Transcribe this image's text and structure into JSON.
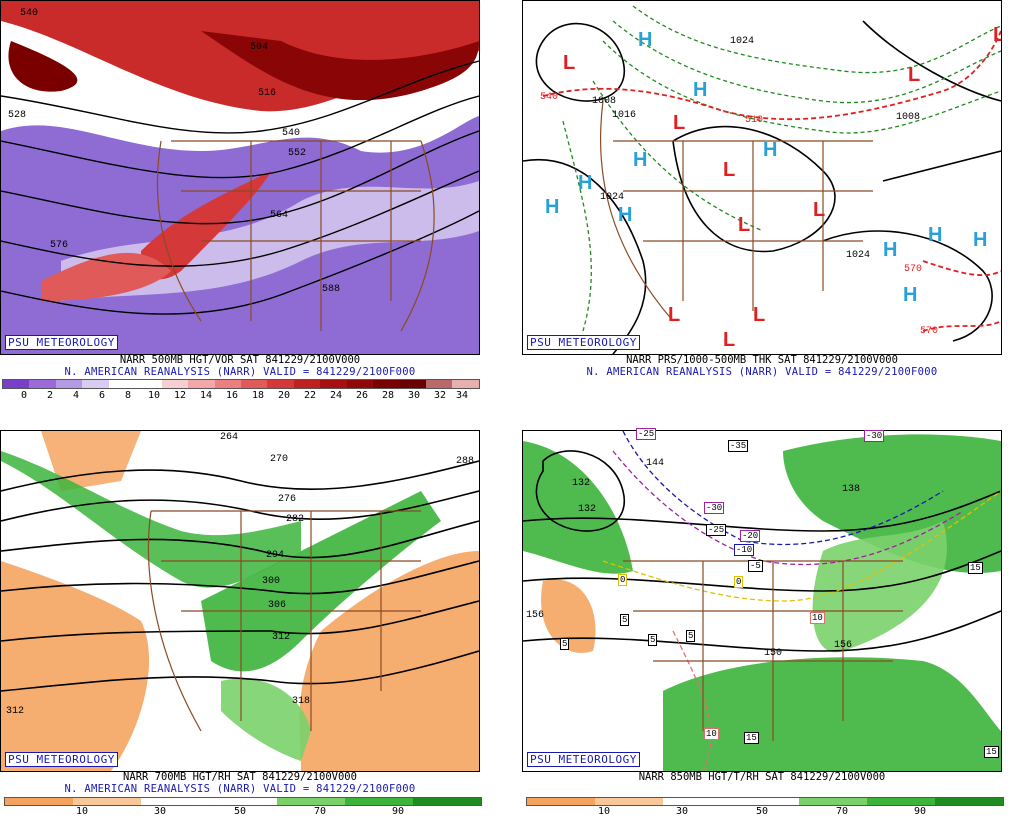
{
  "panels": [
    {
      "id": "vort500",
      "psu_label": "PSU METEOROLOGY",
      "title_line1": "NARR 500MB HGT/VOR SAT 841229/2100V000",
      "title_line2": "N. AMERICAN REANALYSIS (NARR) VALID = 841229/2100F000",
      "contour_labels": [
        "540",
        "504",
        "516",
        "528",
        "540",
        "552",
        "564",
        "576",
        "588"
      ],
      "colorbar": {
        "labels": [
          "0",
          "2",
          "4",
          "6",
          "8",
          "10",
          "12",
          "14",
          "16",
          "18",
          "20",
          "22",
          "24",
          "26",
          "28",
          "30",
          "32",
          "34"
        ],
        "colors": [
          "#7a3fc8",
          "#9a6ad8",
          "#b59ae6",
          "#d8ccf2",
          "#ffffff",
          "#ffffff",
          "#f6d0d0",
          "#f2a8a8",
          "#ea8080",
          "#e05a5a",
          "#d43838",
          "#c02020",
          "#a81010",
          "#900808",
          "#7a0000",
          "#6a0000",
          "#b86a6a",
          "#e7b0b0"
        ]
      }
    },
    {
      "id": "thk1000500",
      "psu_label": "PSU METEOROLOGY",
      "title_line1": "NARR PRS/1000-500MB THK SAT 841229/2100V000",
      "title_line2": "N. AMERICAN REANALYSIS (NARR) VALID = 841229/2100F000",
      "contour_labels": [
        "1024",
        "1008",
        "1016",
        "1024",
        "1024",
        "1008",
        "540",
        "510",
        "570",
        "570"
      ],
      "highs_lows": {
        "H": "H",
        "L": "L"
      }
    },
    {
      "id": "rh700",
      "psu_label": "PSU METEOROLOGY",
      "title_line1": "NARR 700MB HGT/RH SAT 841229/2100V000",
      "title_line2": "N. AMERICAN REANALYSIS (NARR) VALID = 841229/2100F000",
      "contour_labels": [
        "264",
        "270",
        "276",
        "282",
        "288",
        "294",
        "300",
        "306",
        "312",
        "318",
        "312"
      ],
      "colorbar": {
        "labels": [
          "10",
          "30",
          "50",
          "70",
          "90"
        ],
        "colors": [
          "#f4a460",
          "#f9c89a",
          "#ffffff",
          "#ffffff",
          "#7ad16a",
          "#3cb43c",
          "#1e8c1e"
        ]
      }
    },
    {
      "id": "rh850",
      "psu_label": "PSU METEOROLOGY",
      "title_line1": "NARR 850MB HGT/T/RH SAT 841229/2100V000",
      "title_line2": "",
      "contour_labels": [
        "132",
        "144",
        "150",
        "156",
        "132",
        "138",
        "156"
      ],
      "temp_labels": [
        "-25",
        "-35",
        "-30",
        "-30",
        "-25",
        "-20",
        "-10",
        "-5",
        "0",
        "0",
        "5",
        "5",
        "5",
        "5",
        "10",
        "10",
        "15",
        "15",
        "15"
      ],
      "colorbar": {
        "labels": [
          "10",
          "30",
          "50",
          "70",
          "90"
        ],
        "colors": [
          "#f4a460",
          "#f9c89a",
          "#ffffff",
          "#ffffff",
          "#7ad16a",
          "#3cb43c",
          "#1e8c1e"
        ]
      }
    }
  ]
}
